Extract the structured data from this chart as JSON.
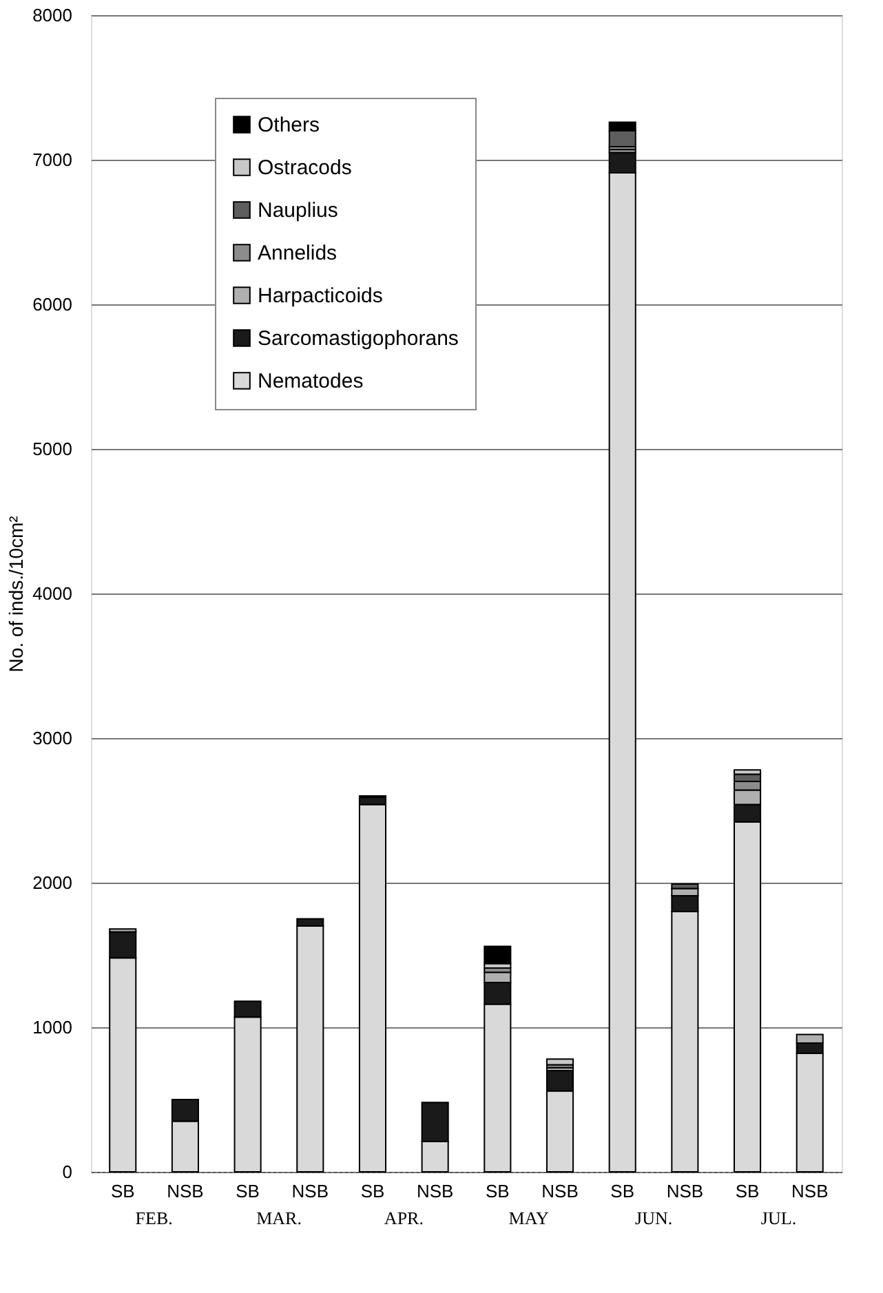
{
  "chart_data": {
    "type": "bar",
    "stacked": true,
    "ylabel": "No. of inds./10cm²",
    "categories": [
      "SB",
      "NSB",
      "SB",
      "NSB",
      "SB",
      "NSB",
      "SB",
      "NSB",
      "SB",
      "NSB",
      "SB",
      "NSB"
    ],
    "annotations": [
      "FEB.",
      "MAR.",
      "APR.",
      "MAY",
      "JUN.",
      "JUL."
    ],
    "series": [
      {
        "name": "Nematodes",
        "color": "#d9d9d9",
        "values": [
          1480,
          350,
          1070,
          1700,
          2540,
          210,
          1160,
          560,
          6910,
          1800,
          2420,
          820
        ]
      },
      {
        "name": "Sarcomastigophorans",
        "color": "#1a1a1a",
        "values": [
          180,
          150,
          110,
          50,
          50,
          270,
          150,
          140,
          140,
          110,
          120,
          70
        ]
      },
      {
        "name": "Harpacticoids",
        "color": "#b0b0b0",
        "values": [
          20,
          null,
          null,
          null,
          10,
          null,
          70,
          20,
          20,
          50,
          100,
          60
        ]
      },
      {
        "name": "Annelids",
        "color": "#8c8c8c",
        "values": [
          null,
          null,
          null,
          null,
          null,
          null,
          30,
          20,
          20,
          null,
          60,
          null
        ]
      },
      {
        "name": "Nauplius",
        "color": "#5e5e5e",
        "values": [
          null,
          null,
          null,
          null,
          null,
          null,
          null,
          null,
          110,
          30,
          50,
          null
        ]
      },
      {
        "name": "Ostracods",
        "color": "#c8c8c8",
        "values": [
          null,
          null,
          null,
          null,
          null,
          null,
          30,
          40,
          null,
          null,
          30,
          null
        ]
      },
      {
        "name": "Others",
        "color": "#000000",
        "values": [
          null,
          null,
          null,
          null,
          null,
          null,
          120,
          null,
          60,
          null,
          null,
          null
        ]
      }
    ],
    "ylim": [
      0,
      8000
    ],
    "yticks": [
      0,
      1000,
      2000,
      3000,
      4000,
      5000,
      6000,
      7000,
      8000
    ],
    "grid": "y",
    "legend": "top left"
  }
}
